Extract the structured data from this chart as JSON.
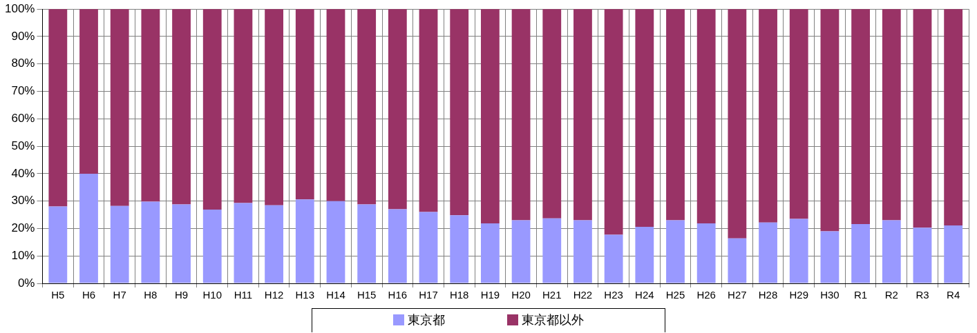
{
  "chart_data": {
    "type": "bar",
    "stacked": true,
    "categories": [
      "H5",
      "H6",
      "H7",
      "H8",
      "H9",
      "H10",
      "H11",
      "H12",
      "H13",
      "H14",
      "H15",
      "H16",
      "H17",
      "H18",
      "H19",
      "H20",
      "H21",
      "H22",
      "H23",
      "H24",
      "H25",
      "H26",
      "H27",
      "H28",
      "H29",
      "H30",
      "R1",
      "R2",
      "R3",
      "R4"
    ],
    "series": [
      {
        "name": "東京都",
        "color": "#9999ff",
        "values": [
          28,
          40,
          28.2,
          29.8,
          28.8,
          26.9,
          29.3,
          28.5,
          30.6,
          30,
          28.8,
          27,
          26,
          24.8,
          21.9,
          23,
          23.7,
          23,
          17.7,
          20.6,
          23,
          21.9,
          16.4,
          22.2,
          23.5,
          19,
          21.6,
          23,
          20.3,
          21.1
        ]
      },
      {
        "name": "東京都以外",
        "color": "#993366",
        "values": [
          72,
          60,
          71.8,
          70.2,
          71.2,
          73.1,
          70.7,
          71.5,
          69.4,
          70,
          71.2,
          73,
          74,
          75.2,
          78.1,
          77,
          76.3,
          77,
          82.3,
          79.4,
          77,
          78.1,
          83.6,
          77.8,
          76.5,
          81,
          78.4,
          77,
          79.7,
          78.9
        ]
      }
    ],
    "ylim": [
      0,
      100
    ],
    "yticks": [
      {
        "value": 0,
        "label": "0%"
      },
      {
        "value": 10,
        "label": "10%"
      },
      {
        "value": 20,
        "label": "20%"
      },
      {
        "value": 30,
        "label": "30%"
      },
      {
        "value": 40,
        "label": "40%"
      },
      {
        "value": 50,
        "label": "50%"
      },
      {
        "value": 60,
        "label": "60%"
      },
      {
        "value": 70,
        "label": "70%"
      },
      {
        "value": 80,
        "label": "80%"
      },
      {
        "value": 90,
        "label": "90%"
      },
      {
        "value": 100,
        "label": "100%"
      }
    ],
    "grid": true,
    "legend": "bottom"
  }
}
